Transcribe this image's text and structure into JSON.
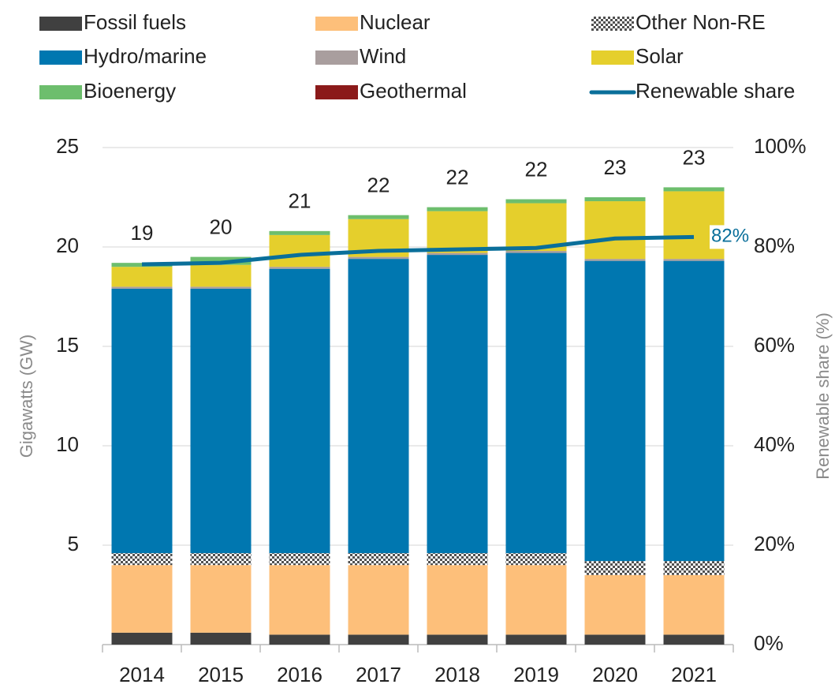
{
  "chart_data": {
    "type": "bar",
    "stacked": true,
    "categories": [
      "2014",
      "2015",
      "2016",
      "2017",
      "2018",
      "2019",
      "2020",
      "2021"
    ],
    "series": [
      {
        "name": "Fossil fuels",
        "color": "#404040",
        "values": [
          0.6,
          0.6,
          0.5,
          0.5,
          0.5,
          0.5,
          0.5,
          0.5
        ]
      },
      {
        "name": "Nuclear",
        "color": "#fdbf7a",
        "values": [
          3.4,
          3.4,
          3.5,
          3.5,
          3.5,
          3.5,
          3.0,
          3.0
        ]
      },
      {
        "name": "Other Non-RE",
        "color": "#505050",
        "pattern": "checker",
        "values": [
          0.6,
          0.6,
          0.6,
          0.6,
          0.6,
          0.6,
          0.7,
          0.7
        ]
      },
      {
        "name": "Hydro/marine",
        "color": "#0077b0",
        "values": [
          13.3,
          13.3,
          14.3,
          14.8,
          15.0,
          15.1,
          15.1,
          15.1
        ]
      },
      {
        "name": "Wind",
        "color": "#a99e9e",
        "values": [
          0.1,
          0.1,
          0.1,
          0.1,
          0.1,
          0.1,
          0.1,
          0.1
        ]
      },
      {
        "name": "Solar",
        "color": "#e5cf2c",
        "values": [
          1.0,
          1.1,
          1.6,
          1.9,
          2.1,
          2.4,
          2.9,
          3.4
        ]
      },
      {
        "name": "Bioenergy",
        "color": "#6dbe6d",
        "values": [
          0.2,
          0.4,
          0.2,
          0.2,
          0.2,
          0.2,
          0.2,
          0.2
        ]
      },
      {
        "name": "Geothermal",
        "color": "#8b1a1a",
        "values": [
          0,
          0,
          0,
          0,
          0,
          0,
          0,
          0
        ]
      },
      {
        "name": "Renewable share",
        "color": "#0a6f9a",
        "type": "line",
        "axis": "y2",
        "values": [
          76.5,
          76.8,
          78.4,
          79.2,
          79.5,
          79.8,
          81.7,
          82
        ],
        "value_labels": [
          null,
          null,
          null,
          null,
          null,
          null,
          null,
          "82%"
        ]
      }
    ],
    "totals": [
      19,
      20,
      21,
      22,
      22,
      22,
      23,
      23
    ],
    "ylabel": "Gigawatts (GW)",
    "y2label": "Renewable share (%)",
    "ylim": [
      0,
      25
    ],
    "yticks": [
      5,
      10,
      15,
      20,
      25
    ],
    "y2lim": [
      0,
      100
    ],
    "y2ticks": [
      {
        "value": 0,
        "label": "0%"
      },
      {
        "value": 20,
        "label": "20%"
      },
      {
        "value": 40,
        "label": "40%"
      },
      {
        "value": 60,
        "label": "60%"
      },
      {
        "value": 80,
        "label": "80%"
      },
      {
        "value": 100,
        "label": "100%"
      }
    ],
    "grid": true,
    "legend": "top"
  }
}
